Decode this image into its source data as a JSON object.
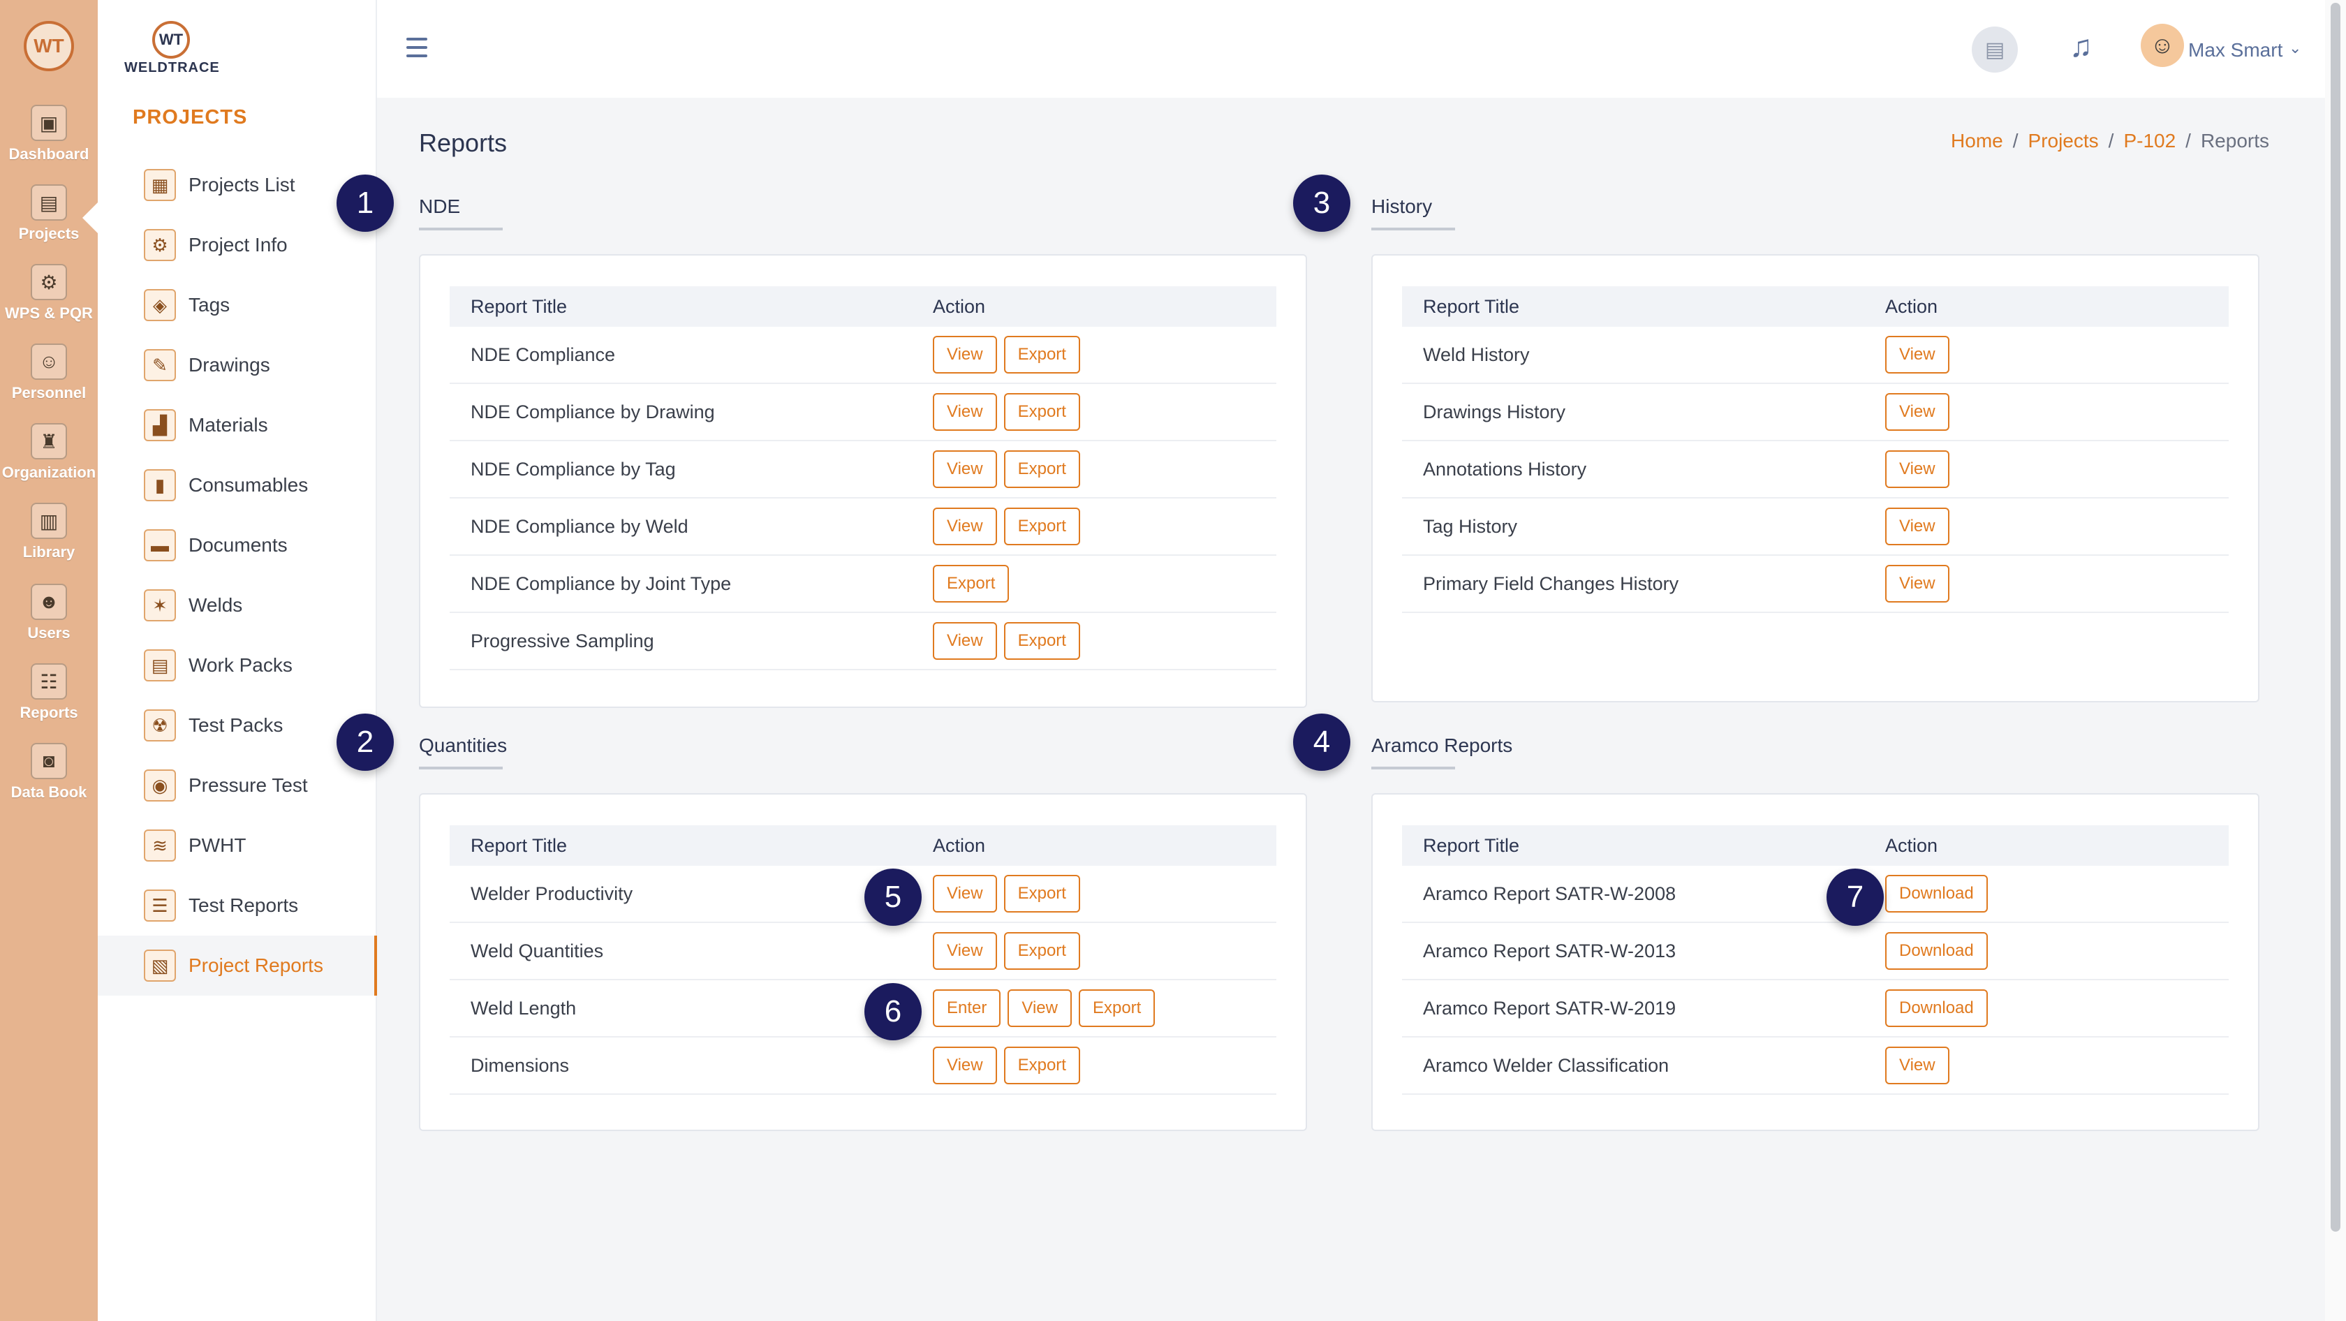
{
  "rail": {
    "logo_text": "WT",
    "items": [
      {
        "label": "Dashboard",
        "icon": "monitor-icon",
        "glyph": "▣"
      },
      {
        "label": "Projects",
        "icon": "folder-gear-icon",
        "glyph": "▤"
      },
      {
        "label": "WPS & PQR",
        "icon": "document-gear-icon",
        "glyph": "⚙"
      },
      {
        "label": "Personnel",
        "icon": "welder-icon",
        "glyph": "☺"
      },
      {
        "label": "Organization",
        "icon": "organization-icon",
        "glyph": "♜"
      },
      {
        "label": "Library",
        "icon": "library-icon",
        "glyph": "▥"
      },
      {
        "label": "Users",
        "icon": "users-icon",
        "glyph": "☻"
      },
      {
        "label": "Reports",
        "icon": "reports-icon",
        "glyph": "☷"
      },
      {
        "label": "Data Book",
        "icon": "data-book-icon",
        "glyph": "◙"
      }
    ]
  },
  "sidebar": {
    "brand": "WELDTRACE",
    "brand_mark": "WT",
    "section_title": "PROJECTS",
    "items": [
      {
        "label": "Projects List",
        "icon": "projects-list-icon",
        "glyph": "▦"
      },
      {
        "label": "Project Info",
        "icon": "project-info-icon",
        "glyph": "⚙"
      },
      {
        "label": "Tags",
        "icon": "tag-icon",
        "glyph": "◈"
      },
      {
        "label": "Drawings",
        "icon": "drawings-icon",
        "glyph": "✎"
      },
      {
        "label": "Materials",
        "icon": "materials-icon",
        "glyph": "▟"
      },
      {
        "label": "Consumables",
        "icon": "consumables-icon",
        "glyph": "▮"
      },
      {
        "label": "Documents",
        "icon": "documents-icon",
        "glyph": "▬"
      },
      {
        "label": "Welds",
        "icon": "welds-icon",
        "glyph": "✶"
      },
      {
        "label": "Work Packs",
        "icon": "work-packs-icon",
        "glyph": "▤"
      },
      {
        "label": "Test Packs",
        "icon": "radiation-icon",
        "glyph": "☢"
      },
      {
        "label": "Pressure Test",
        "icon": "pressure-gauge-icon",
        "glyph": "◉"
      },
      {
        "label": "PWHT",
        "icon": "pwht-icon",
        "glyph": "≋"
      },
      {
        "label": "Test Reports",
        "icon": "test-reports-icon",
        "glyph": "☰"
      },
      {
        "label": "Project Reports",
        "icon": "project-reports-icon",
        "glyph": "▧",
        "active": true
      }
    ]
  },
  "header": {
    "user_name": "Max Smart",
    "book_icon": "book-icon",
    "bell_icon": "bell-icon"
  },
  "page": {
    "title": "Reports",
    "breadcrumb": [
      "Home",
      "Projects",
      "P-102",
      "Reports"
    ]
  },
  "table_headers": {
    "title": "Report Title",
    "action": "Action"
  },
  "groups": {
    "nde": {
      "title": "NDE",
      "badge": "1",
      "rows": [
        {
          "title": "NDE Compliance",
          "actions": [
            "View",
            "Export"
          ]
        },
        {
          "title": "NDE Compliance by Drawing",
          "actions": [
            "View",
            "Export"
          ]
        },
        {
          "title": "NDE Compliance by Tag",
          "actions": [
            "View",
            "Export"
          ]
        },
        {
          "title": "NDE Compliance by Weld",
          "actions": [
            "View",
            "Export"
          ]
        },
        {
          "title": "NDE Compliance by Joint Type",
          "actions": [
            "Export"
          ]
        },
        {
          "title": "Progressive Sampling",
          "actions": [
            "View",
            "Export"
          ]
        }
      ]
    },
    "history": {
      "title": "History",
      "badge": "3",
      "rows": [
        {
          "title": "Weld History",
          "actions": [
            "View"
          ]
        },
        {
          "title": "Drawings History",
          "actions": [
            "View"
          ]
        },
        {
          "title": "Annotations History",
          "actions": [
            "View"
          ]
        },
        {
          "title": "Tag History",
          "actions": [
            "View"
          ]
        },
        {
          "title": "Primary Field Changes History",
          "actions": [
            "View"
          ]
        }
      ]
    },
    "quantities": {
      "title": "Quantities",
      "badge": "2",
      "rows": [
        {
          "title": "Welder Productivity",
          "actions": [
            "View",
            "Export"
          ]
        },
        {
          "title": "Weld Quantities",
          "actions": [
            "View",
            "Export"
          ]
        },
        {
          "title": "Weld Length",
          "actions": [
            "Enter",
            "View",
            "Export"
          ]
        },
        {
          "title": "Dimensions",
          "actions": [
            "View",
            "Export"
          ]
        }
      ]
    },
    "aramco": {
      "title": "Aramco Reports",
      "badge": "4",
      "rows": [
        {
          "title": "Aramco Report SATR-W-2008",
          "actions": [
            "Download"
          ]
        },
        {
          "title": "Aramco Report SATR-W-2013",
          "actions": [
            "Download"
          ]
        },
        {
          "title": "Aramco Report SATR-W-2019",
          "actions": [
            "Download"
          ]
        },
        {
          "title": "Aramco Welder Classification",
          "actions": [
            "View"
          ]
        }
      ]
    }
  },
  "callouts": [
    "5",
    "6",
    "7"
  ]
}
